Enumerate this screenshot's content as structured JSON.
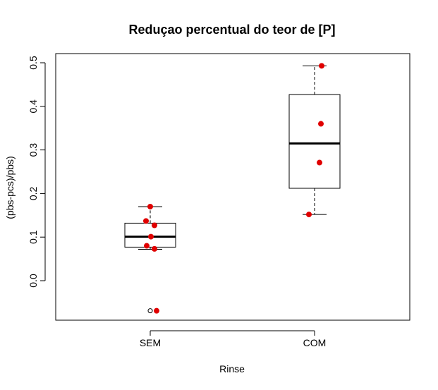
{
  "chart_data": {
    "type": "boxplot",
    "title": "Reduçao percentual do teor de [P]",
    "xlabel": "Rinse",
    "ylabel": "(pbs-pcs)/pbs)",
    "categories": [
      "SEM",
      "COM"
    ],
    "ylim": [
      -0.09,
      0.52
    ],
    "yticks": [
      0.0,
      0.1,
      0.2,
      0.3,
      0.4,
      0.5
    ],
    "ytick_labels": [
      "0.0",
      "0.1",
      "0.2",
      "0.3",
      "0.4",
      "0.5"
    ],
    "boxes": [
      {
        "name": "SEM",
        "whisker_low": 0.072,
        "q1": 0.077,
        "median": 0.101,
        "q3": 0.132,
        "whisker_high": 0.17,
        "outliers": [
          -0.069
        ]
      },
      {
        "name": "COM",
        "whisker_low": 0.152,
        "q1": 0.212,
        "median": 0.315,
        "q3": 0.427,
        "whisker_high": 0.493,
        "outliers": []
      }
    ],
    "points": [
      {
        "group": "SEM",
        "y": 0.17
      },
      {
        "group": "SEM",
        "y": 0.137
      },
      {
        "group": "SEM",
        "y": 0.127
      },
      {
        "group": "SEM",
        "y": 0.101
      },
      {
        "group": "SEM",
        "y": 0.08
      },
      {
        "group": "SEM",
        "y": 0.073
      },
      {
        "group": "SEM",
        "y": -0.069
      },
      {
        "group": "COM",
        "y": 0.493
      },
      {
        "group": "COM",
        "y": 0.36
      },
      {
        "group": "COM",
        "y": 0.271
      },
      {
        "group": "COM",
        "y": 0.152
      }
    ],
    "point_color": "#e00000",
    "grid": false,
    "legend": "none"
  }
}
